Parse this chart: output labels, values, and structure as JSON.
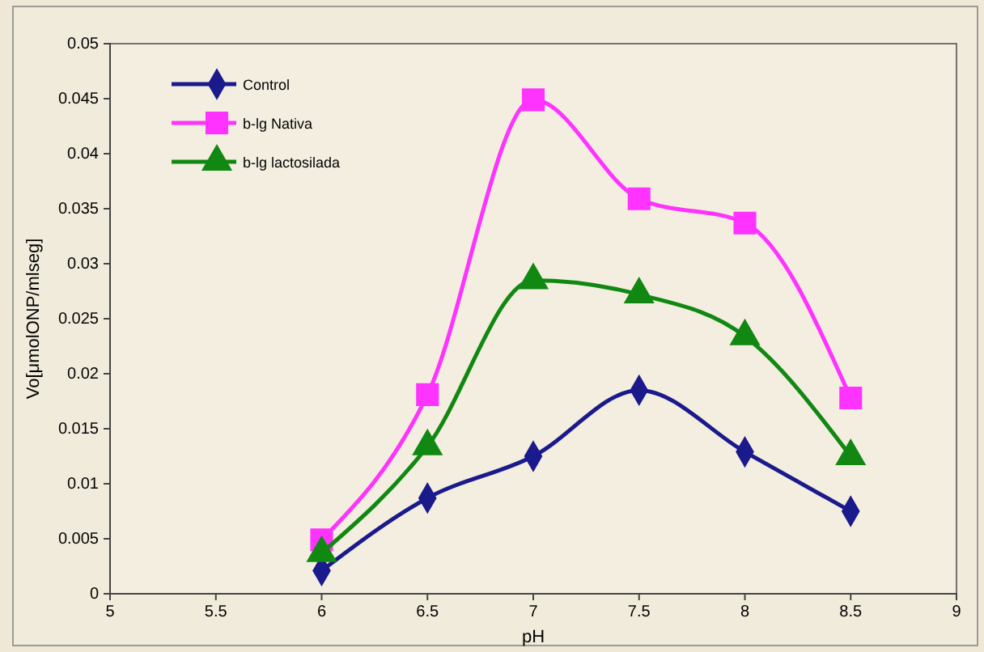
{
  "chart_data": {
    "type": "line",
    "xlabel": "pH",
    "ylabel": "Vo[μmolONP/mlseg]",
    "x": [
      6,
      6.5,
      7,
      7.5,
      8,
      8.5
    ],
    "series": [
      {
        "name": "Control",
        "color": "#1a1a8c",
        "marker": "diamond",
        "values": [
          0.0021,
          0.0087,
          0.0125,
          0.0185,
          0.0129,
          0.0075
        ]
      },
      {
        "name": "b-lg Nativa",
        "color": "#ff33ff",
        "marker": "square",
        "values": [
          0.0049,
          0.0181,
          0.0449,
          0.0359,
          0.0337,
          0.0178
        ]
      },
      {
        "name": "b-lg lactosilada",
        "color": "#118811",
        "marker": "triangle",
        "values": [
          0.0037,
          0.0134,
          0.0285,
          0.0272,
          0.0234,
          0.0125
        ]
      }
    ],
    "xlim": [
      5,
      9
    ],
    "xticks": [
      5,
      5.5,
      6,
      6.5,
      7,
      7.5,
      8,
      8.5,
      9
    ],
    "ylim": [
      0,
      0.05
    ],
    "yticks": [
      0,
      0.005,
      0.01,
      0.015,
      0.02,
      0.025,
      0.03,
      0.035,
      0.04,
      0.045,
      0.05
    ],
    "grid": false,
    "legend": "top left",
    "line_style": "solid"
  }
}
